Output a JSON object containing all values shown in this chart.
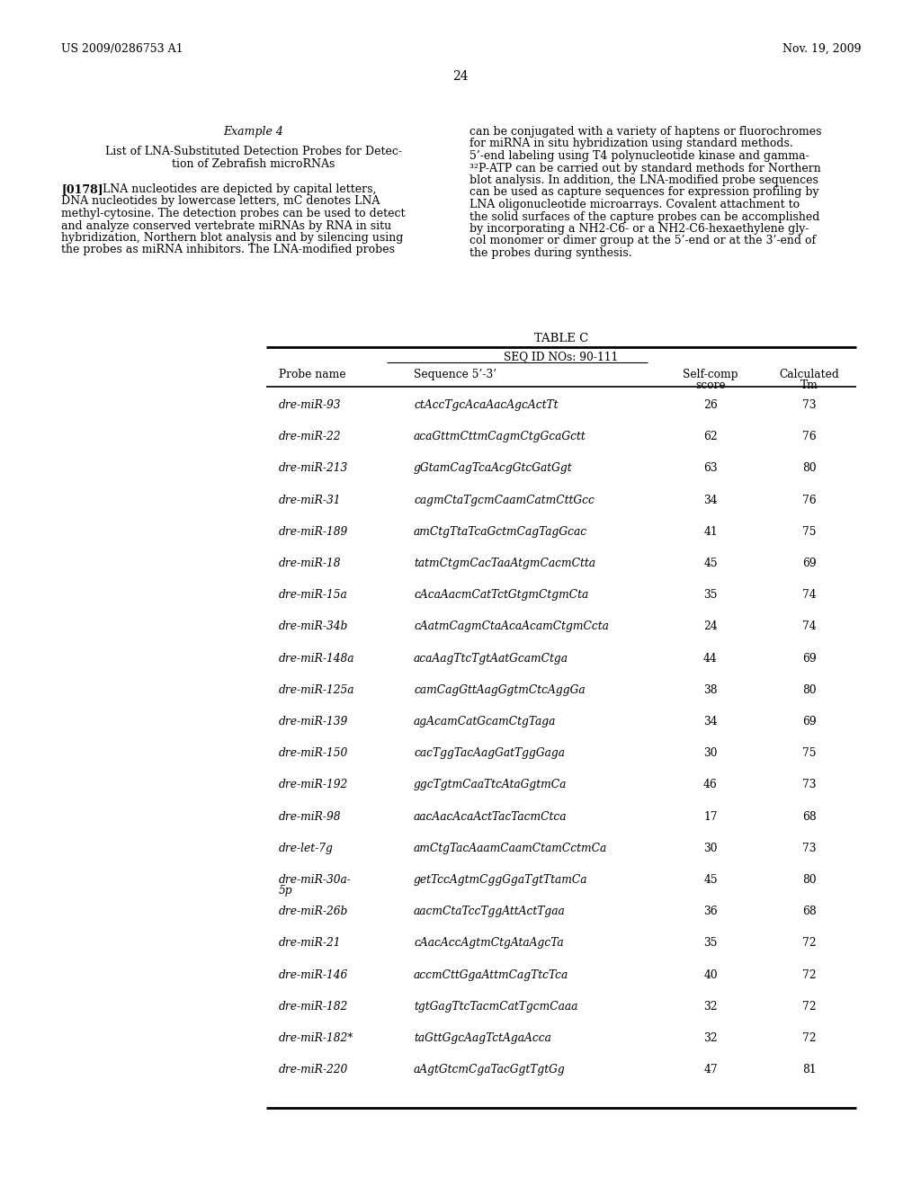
{
  "page_header_left": "US 2009/0286753 A1",
  "page_header_right": "Nov. 19, 2009",
  "page_number": "24",
  "example_title": "Example 4",
  "example_subtitle_line1": "List of LNA-Substituted Detection Probes for Detec-",
  "example_subtitle_line2": "tion of Zebrafish microRNAs",
  "paragraph_label": "[0178]",
  "paragraph_left_lines": [
    "LNA nucleotides are depicted by capital letters,",
    "DNA nucleotides by lowercase letters, mC denotes LNA",
    "methyl-cytosine. The detection probes can be used to detect",
    "and analyze conserved vertebrate miRNAs by RNA in situ",
    "hybridization, Northern blot analysis and by silencing using",
    "the probes as miRNA inhibitors. The LNA-modified probes"
  ],
  "paragraph_right_lines": [
    "can be conjugated with a variety of haptens or fluorochromes",
    "for miRNA in situ hybridization using standard methods.",
    "5’-end labeling using T4 polynucleotide kinase and gamma-",
    "³²P-ATP can be carried out by standard methods for Northern",
    "blot analysis. In addition, the LNA-modified probe sequences",
    "can be used as capture sequences for expression profiling by",
    "LNA oligonucleotide microarrays. Covalent attachment to",
    "the solid surfaces of the capture probes can be accomplished",
    "by incorporating a NH2-C6- or a NH2-C6-hexaethylene gly-",
    "col monomer or dimer group at the 5’-end or at the 3’-end of",
    "the probes during synthesis."
  ],
  "table_title": "TABLE C",
  "table_subtitle": "SEQ ID NOs: 90-111",
  "col_headers": [
    "Probe name",
    "Sequence 5’-3’",
    "Self-comp\nscore",
    "Calculated\nTm"
  ],
  "rows": [
    [
      "dre-miR-93",
      "ctAccTgcAcaAacAgcActTt",
      "26",
      "73"
    ],
    [
      "dre-miR-22",
      "acaGttmCttmCagmCtgGcaGctt",
      "62",
      "76"
    ],
    [
      "dre-miR-213",
      "gGtamCagTcaAcgGtcGatGgt",
      "63",
      "80"
    ],
    [
      "dre-miR-31",
      "cagmCtaTgcmCaamCatmCttGcc",
      "34",
      "76"
    ],
    [
      "dre-miR-189",
      "amCtgTtaTcaGctmCagTagGcac",
      "41",
      "75"
    ],
    [
      "dre-miR-18",
      "tatmCtgmCacTaaAtgmCacmCtta",
      "45",
      "69"
    ],
    [
      "dre-miR-15a",
      "cAcaAacmCatTctGtgmCtgmCta",
      "35",
      "74"
    ],
    [
      "dre-miR-34b",
      "cAatmCagmCtaAcaAcamCtgmCcta",
      "24",
      "74"
    ],
    [
      "dre-miR-148a",
      "acaAagTtcTgtAatGcamCtga",
      "44",
      "69"
    ],
    [
      "dre-miR-125a",
      "camCagGttAagGgtmCtcAggGa",
      "38",
      "80"
    ],
    [
      "dre-miR-139",
      "agAcamCatGcamCtgTaga",
      "34",
      "69"
    ],
    [
      "dre-miR-150",
      "cacTggTacAagGatTggGaga",
      "30",
      "75"
    ],
    [
      "dre-miR-192",
      "ggcTgtmCaaTtcAtaGgtmCa",
      "46",
      "73"
    ],
    [
      "dre-miR-98",
      "aacAacAcaActTacTacmCtca",
      "17",
      "68"
    ],
    [
      "dre-let-7g",
      "amCtgTacAaamCaamCtamCctmCa",
      "30",
      "73"
    ],
    [
      "dre-miR-30a-\n5p",
      "getTccAgtmCggGgaTgtTtamCa",
      "45",
      "80"
    ],
    [
      "dre-miR-26b",
      "aacmCtaTccTggAttActTgaa",
      "36",
      "68"
    ],
    [
      "dre-miR-21",
      "cAacAccAgtmCtgAtaAgcTa",
      "35",
      "72"
    ],
    [
      "dre-miR-146",
      "accmCttGgaAttmCagTtcTca",
      "40",
      "72"
    ],
    [
      "dre-miR-182",
      "tgtGagTtcTacmCatTgcmCaaa",
      "32",
      "72"
    ],
    [
      "dre-miR-182*",
      "taGttGgcAagTctAgaAcca",
      "32",
      "72"
    ],
    [
      "dre-miR-220",
      "aAgtGtcmCgaTacGgtTgtGg",
      "47",
      "81"
    ]
  ],
  "background_color": "#ffffff",
  "text_color": "#000000"
}
